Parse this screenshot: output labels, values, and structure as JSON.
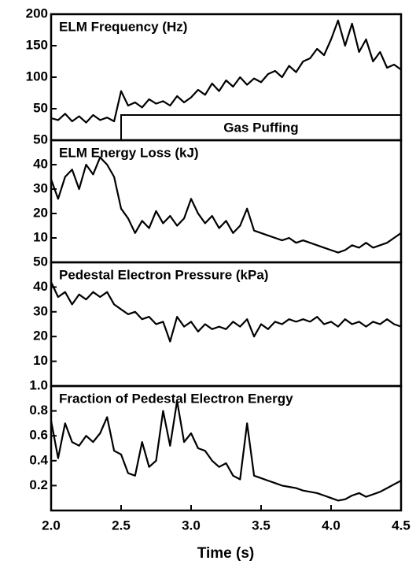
{
  "chart_data": [
    {
      "type": "line",
      "title": "ELM Frequency (Hz)",
      "color": "#000000",
      "x": [
        2.0,
        2.05,
        2.1,
        2.15,
        2.2,
        2.25,
        2.3,
        2.35,
        2.4,
        2.45,
        2.5,
        2.55,
        2.6,
        2.65,
        2.7,
        2.75,
        2.8,
        2.85,
        2.9,
        2.95,
        3.0,
        3.05,
        3.1,
        3.15,
        3.2,
        3.25,
        3.3,
        3.35,
        3.4,
        3.45,
        3.5,
        3.55,
        3.6,
        3.65,
        3.7,
        3.75,
        3.8,
        3.85,
        3.9,
        3.95,
        4.0,
        4.05,
        4.1,
        4.15,
        4.2,
        4.25,
        4.3,
        4.35,
        4.4,
        4.45,
        4.5
      ],
      "values": [
        35,
        32,
        42,
        30,
        38,
        28,
        40,
        32,
        36,
        30,
        78,
        55,
        60,
        52,
        65,
        58,
        62,
        55,
        70,
        60,
        68,
        80,
        72,
        90,
        78,
        95,
        85,
        100,
        88,
        98,
        92,
        105,
        110,
        100,
        118,
        108,
        125,
        130,
        145,
        135,
        160,
        190,
        150,
        185,
        140,
        160,
        125,
        140,
        115,
        120,
        112
      ],
      "xlim": [
        2.0,
        4.5
      ],
      "ylim": [
        0,
        200
      ],
      "yticks": [
        50,
        100,
        150,
        200
      ],
      "annotation": {
        "text": "Gas Puffing",
        "xlim": [
          2.5,
          4.5
        ],
        "ytop": 40
      }
    },
    {
      "type": "line",
      "title": "ELM Energy Loss (kJ)",
      "color": "#000000",
      "x": [
        2.0,
        2.05,
        2.1,
        2.15,
        2.2,
        2.25,
        2.3,
        2.35,
        2.4,
        2.45,
        2.5,
        2.55,
        2.6,
        2.65,
        2.7,
        2.75,
        2.8,
        2.85,
        2.9,
        2.95,
        3.0,
        3.05,
        3.1,
        3.15,
        3.2,
        3.25,
        3.3,
        3.35,
        3.4,
        3.45,
        3.5,
        3.55,
        3.6,
        3.65,
        3.7,
        3.75,
        3.8,
        3.85,
        3.9,
        3.95,
        4.0,
        4.05,
        4.1,
        4.15,
        4.2,
        4.25,
        4.3,
        4.35,
        4.4,
        4.45,
        4.5
      ],
      "values": [
        34,
        26,
        35,
        38,
        30,
        40,
        36,
        43,
        40,
        35,
        22,
        18,
        12,
        17,
        14,
        21,
        16,
        19,
        15,
        18,
        26,
        20,
        16,
        19,
        14,
        17,
        12,
        15,
        22,
        13,
        12,
        11,
        10,
        9,
        10,
        8,
        9,
        8,
        7,
        6,
        5,
        4,
        5,
        7,
        6,
        8,
        6,
        7,
        8,
        10,
        12
      ],
      "xlim": [
        2.0,
        4.5
      ],
      "ylim": [
        0,
        50
      ],
      "yticks": [
        10,
        20,
        30,
        40,
        50
      ]
    },
    {
      "type": "line",
      "title": "Pedestal Electron Pressure (kPa)",
      "color": "#000000",
      "x": [
        2.0,
        2.05,
        2.1,
        2.15,
        2.2,
        2.25,
        2.3,
        2.35,
        2.4,
        2.45,
        2.5,
        2.55,
        2.6,
        2.65,
        2.7,
        2.75,
        2.8,
        2.85,
        2.9,
        2.95,
        3.0,
        3.05,
        3.1,
        3.15,
        3.2,
        3.25,
        3.3,
        3.35,
        3.4,
        3.45,
        3.5,
        3.55,
        3.6,
        3.65,
        3.7,
        3.75,
        3.8,
        3.85,
        3.9,
        3.95,
        4.0,
        4.05,
        4.1,
        4.15,
        4.2,
        4.25,
        4.3,
        4.35,
        4.4,
        4.45,
        4.5
      ],
      "values": [
        42,
        36,
        38,
        33,
        37,
        35,
        38,
        36,
        38,
        33,
        31,
        29,
        30,
        27,
        28,
        25,
        26,
        18,
        28,
        24,
        26,
        22,
        25,
        23,
        24,
        23,
        26,
        24,
        27,
        20,
        25,
        23,
        26,
        25,
        27,
        26,
        27,
        26,
        28,
        25,
        26,
        24,
        27,
        25,
        26,
        24,
        26,
        25,
        27,
        25,
        24
      ],
      "xlim": [
        2.0,
        4.5
      ],
      "ylim": [
        0,
        50
      ],
      "yticks": [
        10,
        20,
        30,
        40,
        50
      ]
    },
    {
      "type": "line",
      "title": "Fraction of Pedestal Electron Energy",
      "color": "#000000",
      "x": [
        2.0,
        2.05,
        2.1,
        2.15,
        2.2,
        2.25,
        2.3,
        2.35,
        2.4,
        2.45,
        2.5,
        2.55,
        2.6,
        2.65,
        2.7,
        2.75,
        2.8,
        2.85,
        2.9,
        2.95,
        3.0,
        3.05,
        3.1,
        3.15,
        3.2,
        3.25,
        3.3,
        3.35,
        3.4,
        3.45,
        3.5,
        3.55,
        3.6,
        3.65,
        3.7,
        3.75,
        3.8,
        3.85,
        3.9,
        3.95,
        4.0,
        4.05,
        4.1,
        4.15,
        4.2,
        4.25,
        4.3,
        4.35,
        4.4,
        4.45,
        4.5
      ],
      "values": [
        0.72,
        0.42,
        0.7,
        0.55,
        0.52,
        0.6,
        0.55,
        0.62,
        0.75,
        0.48,
        0.45,
        0.3,
        0.28,
        0.55,
        0.35,
        0.4,
        0.8,
        0.52,
        0.88,
        0.55,
        0.62,
        0.5,
        0.48,
        0.4,
        0.35,
        0.38,
        0.28,
        0.25,
        0.7,
        0.28,
        0.26,
        0.24,
        0.22,
        0.2,
        0.19,
        0.18,
        0.16,
        0.15,
        0.14,
        0.12,
        0.1,
        0.08,
        0.09,
        0.12,
        0.14,
        0.11,
        0.13,
        0.15,
        0.18,
        0.21,
        0.24
      ],
      "xlim": [
        2.0,
        4.5
      ],
      "ylim": [
        0,
        1.0
      ],
      "yticks": [
        0.2,
        0.4,
        0.6,
        0.8,
        {
          "value": 1.0,
          "label": "1.0"
        }
      ],
      "xlabel": "Time (s)",
      "xticks": [
        {
          "value": 2.0,
          "label": "2.0"
        },
        {
          "value": 2.5,
          "label": "2.5"
        },
        {
          "value": 3.0,
          "label": "3.0"
        },
        {
          "value": 3.5,
          "label": "3.5"
        },
        {
          "value": 4.0,
          "label": "4.0"
        },
        {
          "value": 4.5,
          "label": "4.5"
        }
      ]
    }
  ]
}
